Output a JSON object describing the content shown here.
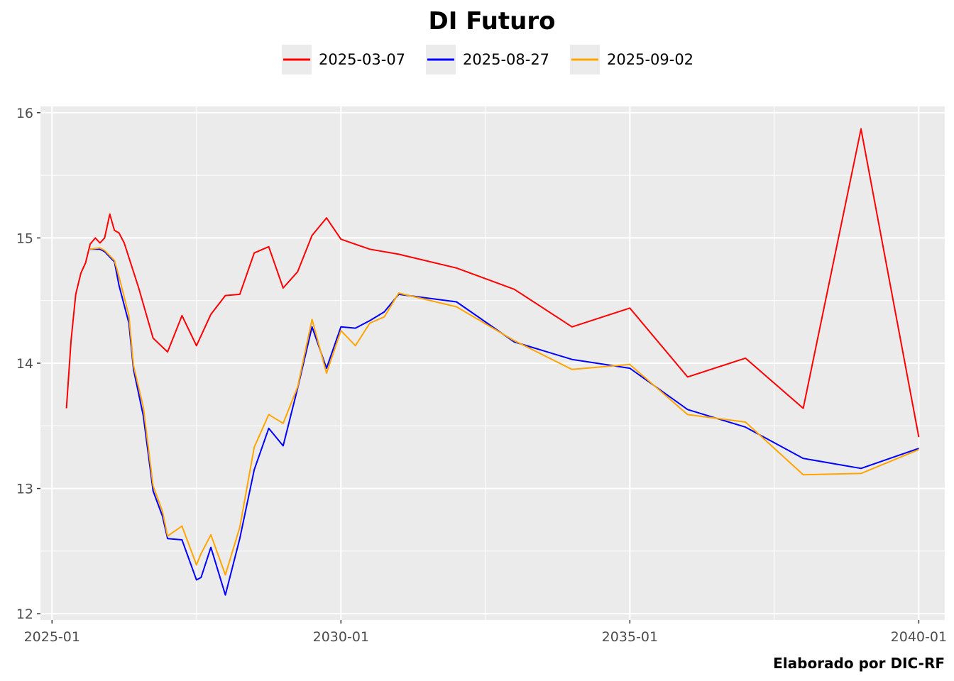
{
  "chart_data": {
    "type": "line",
    "title": "DI Futuro",
    "caption": "Elaborado por DIC-RF",
    "xlabel": "",
    "ylabel": "",
    "x_ticks": [
      "2025-01",
      "2030-01",
      "2035-01",
      "2040-01"
    ],
    "y_ticks": [
      12,
      13,
      14,
      15,
      16
    ],
    "xlim": [
      2024.8,
      2040.45
    ],
    "ylim": [
      11.95,
      16.05
    ],
    "grid": true,
    "legend_position": "top",
    "colors": {
      "panel_background": "#ebebeb",
      "grid": "#ffffff",
      "2025-03-07": "#ff0000",
      "2025-08-27": "#0000ff",
      "2025-09-02": "#ffa500"
    },
    "series": [
      {
        "name": "2025-03-07",
        "color": "#ff0000",
        "x": [
          2025.25,
          2025.33,
          2025.41,
          2025.5,
          2025.58,
          2025.66,
          2025.75,
          2025.83,
          2025.91,
          2026.0,
          2026.08,
          2026.16,
          2026.25,
          2026.5,
          2026.75,
          2027.0,
          2027.25,
          2027.5,
          2027.75,
          2028.0,
          2028.25,
          2028.5,
          2028.75,
          2029.0,
          2029.25,
          2029.5,
          2029.75,
          2030.0,
          2030.5,
          2031.0,
          2032.0,
          2033.0,
          2034.0,
          2035.0,
          2036.0,
          2037.0,
          2038.0,
          2039.0,
          2040.0
        ],
        "values": [
          13.64,
          14.18,
          14.55,
          14.72,
          14.8,
          14.95,
          15.0,
          14.96,
          15.0,
          15.19,
          15.06,
          15.04,
          14.96,
          14.6,
          14.2,
          14.09,
          14.38,
          14.14,
          14.39,
          14.54,
          14.55,
          14.88,
          14.93,
          14.6,
          14.73,
          15.02,
          15.16,
          14.99,
          14.91,
          14.87,
          14.76,
          14.59,
          14.29,
          14.44,
          13.89,
          14.04,
          13.64,
          15.87,
          13.41
        ]
      },
      {
        "name": "2025-08-27",
        "color": "#0000ff",
        "x": [
          2025.66,
          2025.83,
          2025.91,
          2026.08,
          2026.16,
          2026.33,
          2026.41,
          2026.58,
          2026.75,
          2026.91,
          2027.0,
          2027.25,
          2027.5,
          2027.58,
          2027.75,
          2028.0,
          2028.25,
          2028.5,
          2028.75,
          2029.0,
          2029.25,
          2029.5,
          2029.75,
          2030.0,
          2030.25,
          2030.5,
          2030.75,
          2031.0,
          2032.0,
          2033.0,
          2034.0,
          2035.0,
          2036.0,
          2037.0,
          2038.0,
          2039.0,
          2040.0
        ],
        "values": [
          14.91,
          14.91,
          14.89,
          14.81,
          14.62,
          14.32,
          13.95,
          13.58,
          12.98,
          12.78,
          12.6,
          12.59,
          12.27,
          12.29,
          12.53,
          12.15,
          12.6,
          13.15,
          13.48,
          13.34,
          13.8,
          14.29,
          13.96,
          14.29,
          14.28,
          14.34,
          14.41,
          14.55,
          14.49,
          14.17,
          14.03,
          13.96,
          13.63,
          13.49,
          13.24,
          13.16,
          13.32
        ]
      },
      {
        "name": "2025-09-02",
        "color": "#ffa500",
        "x": [
          2025.66,
          2025.83,
          2025.91,
          2026.08,
          2026.16,
          2026.33,
          2026.41,
          2026.58,
          2026.75,
          2026.91,
          2027.0,
          2027.25,
          2027.5,
          2027.58,
          2027.75,
          2028.0,
          2028.25,
          2028.5,
          2028.75,
          2029.0,
          2029.25,
          2029.5,
          2029.75,
          2030.0,
          2030.25,
          2030.5,
          2030.75,
          2031.0,
          2032.0,
          2033.0,
          2034.0,
          2035.0,
          2036.0,
          2037.0,
          2038.0,
          2039.0,
          2040.0
        ],
        "values": [
          14.91,
          14.92,
          14.9,
          14.82,
          14.69,
          14.38,
          13.98,
          13.65,
          13.02,
          12.82,
          12.62,
          12.7,
          12.39,
          12.48,
          12.63,
          12.31,
          12.69,
          13.33,
          13.59,
          13.52,
          13.81,
          14.35,
          13.92,
          14.26,
          14.14,
          14.32,
          14.37,
          14.56,
          14.45,
          14.18,
          13.95,
          13.99,
          13.59,
          13.53,
          13.11,
          13.12,
          13.31
        ]
      }
    ]
  }
}
